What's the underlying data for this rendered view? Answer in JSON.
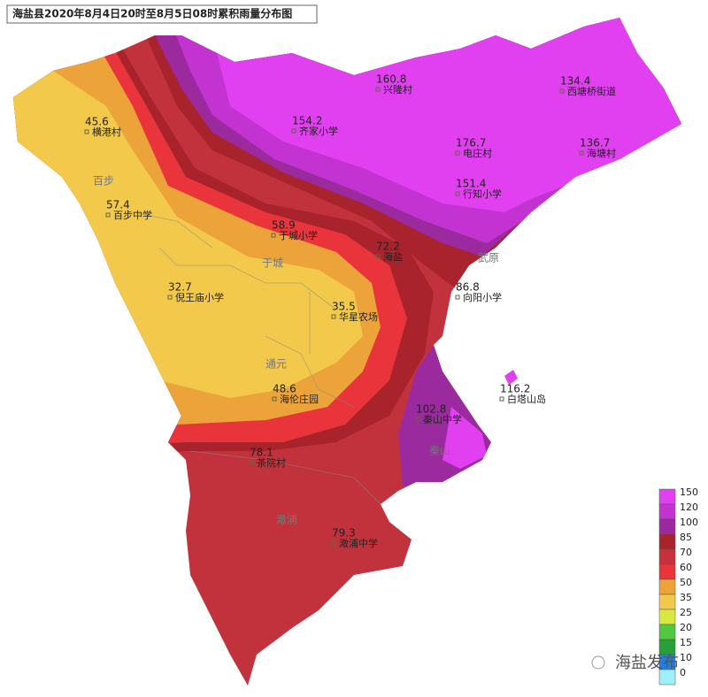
{
  "title": "海盐县2020年8月4日20时至8月5日08时累积雨量分布图",
  "stations": [
    {
      "value": 160.8,
      "name": "兴隆村"
    },
    {
      "value": 134.4,
      "name": "西塘桥街道"
    },
    {
      "value": 154.2,
      "name": "齐家小学"
    },
    {
      "value": 176.7,
      "name": "电庄村"
    },
    {
      "value": 136.7,
      "name": "海塘村"
    },
    {
      "value": 151.4,
      "name": "行知小学"
    },
    {
      "value": 45.6,
      "name": "横港村"
    },
    {
      "value": 57.4,
      "name": "百步中学"
    },
    {
      "value": 58.9,
      "name": "于城小学"
    },
    {
      "value": 72.2,
      "name": "海盐"
    },
    {
      "value": 86.8,
      "name": "向阳小学"
    },
    {
      "value": 32.7,
      "name": "倪王庙小学"
    },
    {
      "value": 35.5,
      "name": "华星农场"
    },
    {
      "value": 116.2,
      "name": "白塔山岛"
    },
    {
      "value": 102.8,
      "name": "秦山中学"
    },
    {
      "value": 48.6,
      "name": "海伦庄园"
    },
    {
      "value": 78.1,
      "name": "茶院村"
    },
    {
      "value": 79.3,
      "name": "澉浦中学"
    }
  ],
  "regions": [
    "百步",
    "于城",
    "通元",
    "澉浦",
    "秦山",
    "武原"
  ],
  "legend": [
    {
      "value": 150,
      "color": "#e040f0"
    },
    {
      "value": 120,
      "color": "#c233d2"
    },
    {
      "value": 100,
      "color": "#9a2a9e"
    },
    {
      "value": 85,
      "color": "#a8232c"
    },
    {
      "value": 70,
      "color": "#c8303a"
    },
    {
      "value": 60,
      "color": "#e8343a"
    },
    {
      "value": 50,
      "color": "#eca33a"
    },
    {
      "value": 35,
      "color": "#f2c94a"
    },
    {
      "value": 25,
      "color": "#d8e840"
    },
    {
      "value": 20,
      "color": "#50c840"
    },
    {
      "value": 15,
      "color": "#28a038"
    },
    {
      "value": 10,
      "color": "#2080e0"
    },
    {
      "value": 0,
      "color": "#9ef0f8"
    }
  ],
  "watermark": "海盐发布"
}
